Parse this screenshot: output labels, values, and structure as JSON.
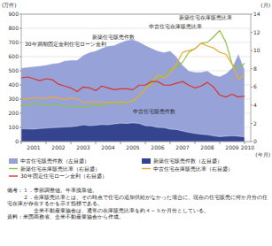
{
  "chart_data": {
    "type": "area_line",
    "y_label": "(万件)",
    "y2_label": "(月)",
    "x_label": "(年月)",
    "x": [
      2001,
      2001.25,
      2001.5,
      2001.75,
      2002,
      2002.25,
      2002.5,
      2002.75,
      2003,
      2003.25,
      2003.5,
      2003.75,
      2004,
      2004.25,
      2004.5,
      2004.75,
      2005,
      2005.25,
      2005.5,
      2005.75,
      2006,
      2006.25,
      2006.5,
      2006.75,
      2007,
      2007.25,
      2007.5,
      2007.75,
      2008,
      2008.25,
      2008.5,
      2008.75,
      2009,
      2009.25,
      2009.5,
      2009.75,
      2010
    ],
    "xlim": [
      2001,
      2010.25
    ],
    "xticks": [
      2001,
      2002,
      2003,
      2004,
      2005,
      2006,
      2007,
      2008,
      2009,
      2010
    ],
    "ylim": [
      0,
      900
    ],
    "yticks": [
      0,
      100,
      200,
      300,
      400,
      500,
      600,
      700,
      800,
      900
    ],
    "y2lim": [
      0,
      14
    ],
    "y2ticks": [
      0,
      2,
      4,
      6,
      8,
      10,
      12,
      14
    ],
    "grid": true,
    "series": [
      {
        "name": "中古住宅販売件数（左目盛）",
        "type": "area",
        "color": "#97a3d8",
        "values": [
          520,
          525,
          530,
          535,
          540,
          550,
          555,
          570,
          575,
          575,
          610,
          630,
          640,
          660,
          675,
          680,
          700,
          715,
          720,
          705,
          680,
          660,
          640,
          630,
          640,
          600,
          540,
          500,
          490,
          490,
          500,
          470,
          460,
          480,
          520,
          620,
          510
        ]
      },
      {
        "name": "新築住宅販売件数（左目盛）",
        "type": "area",
        "color": "#34448f",
        "values": [
          90,
          89,
          88,
          92,
          95,
          98,
          100,
          103,
          105,
          110,
          118,
          112,
          115,
          120,
          118,
          125,
          130,
          128,
          132,
          128,
          112,
          110,
          100,
          98,
          88,
          85,
          75,
          65,
          58,
          52,
          48,
          40,
          35,
          38,
          40,
          38,
          33
        ]
      },
      {
        "name": "新築住宅在庫販売比率（右目盛）",
        "type": "line",
        "axis": "y2",
        "color": "#8cc63f",
        "values": [
          4.0,
          4.0,
          4.2,
          4.1,
          4.0,
          4.0,
          4.0,
          3.9,
          3.9,
          3.8,
          3.7,
          3.9,
          4.0,
          3.9,
          4.2,
          4.3,
          4.1,
          4.3,
          4.4,
          5.0,
          5.8,
          6.3,
          7.0,
          7.2,
          7.9,
          8.2,
          8.7,
          9.8,
          10.2,
          10.8,
          10.9,
          11.5,
          12.2,
          10.9,
          8.5,
          8.0,
          8.6
        ]
      },
      {
        "name": "中古住宅在庫販売比率（右目盛）",
        "type": "line",
        "axis": "y2",
        "color": "#f0a830",
        "values": [
          4.6,
          4.7,
          4.8,
          4.8,
          4.7,
          4.9,
          4.8,
          4.6,
          4.8,
          4.7,
          4.3,
          4.3,
          4.4,
          4.3,
          4.3,
          4.3,
          4.4,
          4.3,
          4.5,
          5.0,
          5.8,
          6.5,
          7.3,
          7.0,
          7.5,
          8.5,
          9.8,
          10.0,
          10.2,
          10.8,
          10.5,
          10.3,
          9.8,
          9.6,
          8.5,
          6.8,
          7.4
        ]
      },
      {
        "name": "30年固定住宅ローン金利（右目盛）",
        "type": "line",
        "axis": "y2",
        "color": "#d9342b",
        "values": [
          7.0,
          7.1,
          6.9,
          6.7,
          6.9,
          6.8,
          6.3,
          6.1,
          5.9,
          5.5,
          6.0,
          5.9,
          5.6,
          6.1,
          5.9,
          5.7,
          5.8,
          5.8,
          5.7,
          6.2,
          6.2,
          6.6,
          6.6,
          6.2,
          6.2,
          6.4,
          6.6,
          6.2,
          5.9,
          6.1,
          6.5,
          6.0,
          5.1,
          4.9,
          5.2,
          4.9,
          5.0
        ]
      }
    ],
    "annotations": [
      "30年満期固定金利住宅ローン金利",
      "新築住宅販売件数",
      "新築住宅在庫販売比率",
      "中古住宅在庫販売比率",
      "中古住宅販売件数"
    ],
    "notes": [
      "備考：１．季節調整値。年率換算値。",
      "　　　２．在庫販売比率とは、その時点で住宅の追加供給がなかった場合に、現在の住宅販売に何か月分の住宅在庫が存在するかを示す指標である。",
      "　　　　　全米不動産業協会は、通常の在庫販売比率を約４～５か月分としている。",
      "資料：米国商務省、全米不動産業協会から作成。"
    ]
  }
}
